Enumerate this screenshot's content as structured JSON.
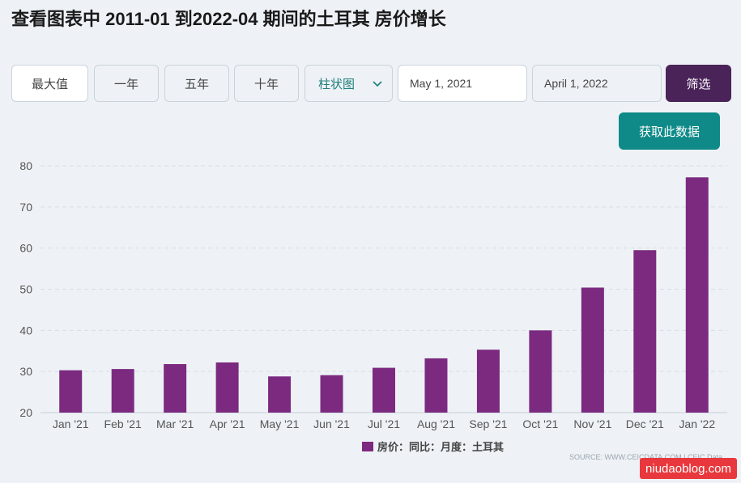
{
  "title": "查看图表中 2011-01 到2022-04 期间的土耳其 房价增长",
  "controls": {
    "max_label": "最大值",
    "one_year_label": "一年",
    "five_year_label": "五年",
    "ten_year_label": "十年",
    "chart_type_selected": "柱状图",
    "start_date": "May 1, 2021",
    "end_date": "April 1, 2022",
    "filter_label": "筛选",
    "get_data_label": "获取此数据"
  },
  "source_text": "SOURCE: WWW.CEICDATA.COM | CEIC Data",
  "watermark_text": "niudaoblog.com",
  "chart_data": {
    "type": "bar",
    "categories": [
      "Jan '21",
      "Feb '21",
      "Mar '21",
      "Apr '21",
      "May '21",
      "Jun '21",
      "Jul '21",
      "Aug '21",
      "Sep '21",
      "Oct '21",
      "Nov '21",
      "Dec '21",
      "Jan '22"
    ],
    "series": [
      {
        "name": "房价：同比：月度：土耳其",
        "color": "#7b2a80",
        "values": [
          30.3,
          30.6,
          31.8,
          32.2,
          28.8,
          29.1,
          30.9,
          33.2,
          35.3,
          40.0,
          50.4,
          59.5,
          77.2
        ]
      }
    ],
    "yticks": [
      20,
      30,
      40,
      50,
      60,
      70,
      80
    ],
    "ylim": [
      20,
      80
    ],
    "grid": true,
    "legend_position": "bottom-center"
  }
}
